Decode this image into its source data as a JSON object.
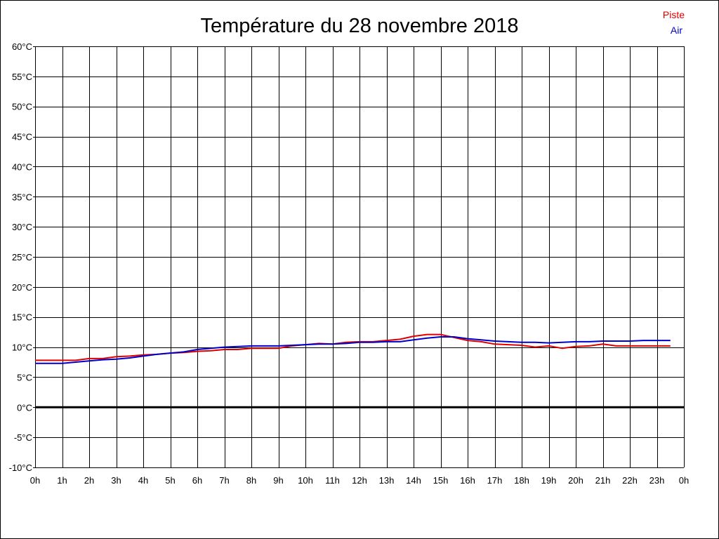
{
  "chart_data": {
    "type": "line",
    "title": "Température du 28 novembre 2018",
    "xlabel": "",
    "ylabel": "",
    "xlim": [
      0,
      24
    ],
    "ylim": [
      -10,
      60
    ],
    "x_ticks": [
      0,
      1,
      2,
      3,
      4,
      5,
      6,
      7,
      8,
      9,
      10,
      11,
      12,
      13,
      14,
      15,
      16,
      17,
      18,
      19,
      20,
      21,
      22,
      23,
      24
    ],
    "x_tick_labels": [
      "0h",
      "1h",
      "2h",
      "3h",
      "4h",
      "5h",
      "6h",
      "7h",
      "8h",
      "9h",
      "10h",
      "11h",
      "12h",
      "13h",
      "14h",
      "15h",
      "16h",
      "17h",
      "18h",
      "19h",
      "20h",
      "21h",
      "22h",
      "23h",
      "0h"
    ],
    "y_ticks": [
      -10,
      -5,
      0,
      5,
      10,
      15,
      20,
      25,
      30,
      35,
      40,
      45,
      50,
      55,
      60
    ],
    "y_tick_labels": [
      "-10°C",
      "-5°C",
      "0°C",
      "5°C",
      "10°C",
      "15°C",
      "20°C",
      "25°C",
      "30°C",
      "35°C",
      "40°C",
      "45°C",
      "50°C",
      "55°C",
      "60°C"
    ],
    "grid": true,
    "zero_line": true,
    "legend_position": "top-right",
    "series": [
      {
        "name": "Piste",
        "color": "#dd0000",
        "x": [
          0,
          0.5,
          1,
          1.5,
          2,
          2.5,
          3,
          3.5,
          4,
          4.5,
          5,
          5.5,
          6,
          6.5,
          7,
          7.5,
          8,
          8.5,
          9,
          9.5,
          10,
          10.5,
          11,
          11.5,
          12,
          12.5,
          13,
          13.5,
          14,
          14.5,
          15,
          15.5,
          16,
          16.5,
          17,
          17.5,
          18,
          18.5,
          19,
          19.5,
          20,
          20.5,
          21,
          21.5,
          22,
          22.5,
          23,
          23.5
        ],
        "values": [
          7.8,
          7.8,
          7.8,
          7.8,
          8.1,
          8.1,
          8.4,
          8.5,
          8.7,
          8.8,
          9.0,
          9.1,
          9.3,
          9.4,
          9.6,
          9.6,
          9.8,
          9.8,
          9.8,
          10.2,
          10.4,
          10.6,
          10.5,
          10.8,
          10.9,
          10.9,
          11.1,
          11.3,
          11.8,
          12.1,
          12.1,
          11.6,
          11.1,
          10.9,
          10.5,
          10.4,
          10.3,
          10.0,
          10.2,
          9.8,
          10.1,
          10.2,
          10.5,
          10.2,
          10.2,
          10.2,
          10.2,
          10.2
        ]
      },
      {
        "name": "Air",
        "color": "#0000cc",
        "x": [
          0,
          0.5,
          1,
          1.5,
          2,
          2.5,
          3,
          3.5,
          4,
          4.5,
          5,
          5.5,
          6,
          6.5,
          7,
          7.5,
          8,
          8.5,
          9,
          9.5,
          10,
          10.5,
          11,
          11.5,
          12,
          12.5,
          13,
          13.5,
          14,
          14.5,
          15,
          15.5,
          16,
          16.5,
          17,
          17.5,
          18,
          18.5,
          19,
          19.5,
          20,
          20.5,
          21,
          21.5,
          22,
          22.5,
          23,
          23.5
        ],
        "values": [
          7.3,
          7.3,
          7.3,
          7.5,
          7.7,
          7.9,
          8.0,
          8.2,
          8.5,
          8.8,
          9.0,
          9.2,
          9.6,
          9.8,
          10.0,
          10.1,
          10.2,
          10.2,
          10.2,
          10.3,
          10.4,
          10.5,
          10.5,
          10.6,
          10.8,
          10.8,
          10.9,
          10.9,
          11.2,
          11.5,
          11.7,
          11.7,
          11.4,
          11.2,
          11.0,
          10.9,
          10.8,
          10.8,
          10.7,
          10.8,
          10.9,
          10.9,
          11.0,
          11.0,
          11.0,
          11.1,
          11.1,
          11.1
        ]
      }
    ]
  }
}
